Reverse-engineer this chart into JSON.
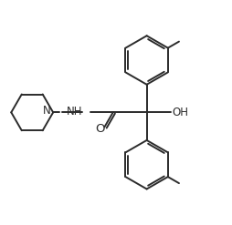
{
  "background_color": "#ffffff",
  "line_color": "#2b2b2b",
  "text_color": "#2b2b2b",
  "line_width": 1.4,
  "font_size": 8.5,
  "figsize": [
    2.55,
    2.47
  ],
  "dpi": 100,
  "xlim": [
    0,
    10
  ],
  "ylim": [
    0,
    9.69
  ]
}
